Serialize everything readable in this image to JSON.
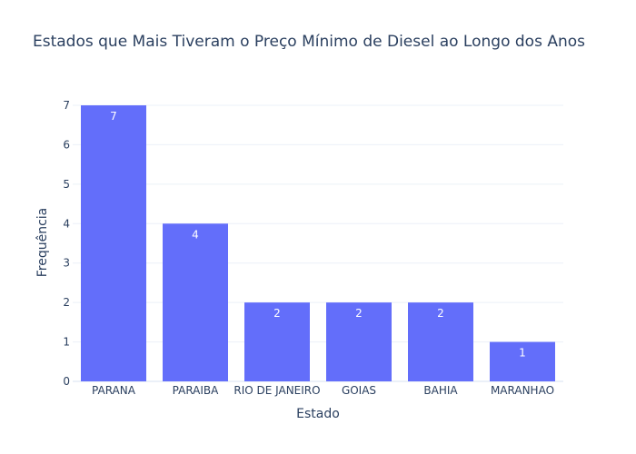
{
  "chart_data": {
    "type": "bar",
    "title": "Estados que Mais Tiveram o Preço Mínimo de Diesel ao Longo dos Anos",
    "xlabel": "Estado",
    "ylabel": "Frequência",
    "categories": [
      "PARANA",
      "PARAIBA",
      "RIO DE JANEIRO",
      "GOIAS",
      "BAHIA",
      "MARANHAO"
    ],
    "values": [
      7,
      4,
      2,
      2,
      2,
      1
    ],
    "data_labels": [
      "7",
      "4",
      "2",
      "2",
      "2",
      "1"
    ],
    "ylim": [
      0,
      7
    ],
    "yticks": [
      0,
      1,
      2,
      3,
      4,
      5,
      6,
      7
    ],
    "ytick_labels": [
      "0",
      "1",
      "2",
      "3",
      "4",
      "5",
      "6",
      "7"
    ],
    "grid": true,
    "colors": {
      "bar": "#636efa",
      "grid": "#ebf0f8",
      "text": "#2a3f5f",
      "label": "#ffffff",
      "background": "#ffffff"
    }
  }
}
